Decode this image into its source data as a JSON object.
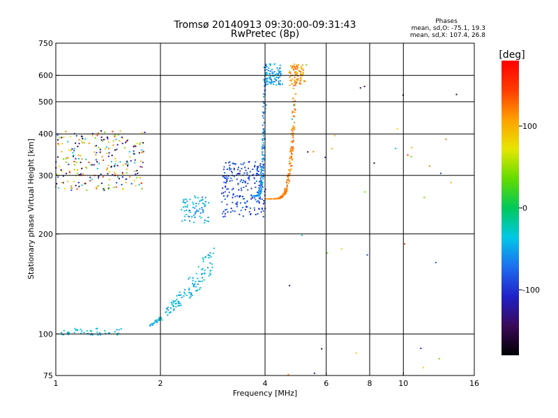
{
  "chart_data": {
    "type": "scatter",
    "title": "Tromsø 20140913 09:30:00-09:31:43",
    "subtitle": "RwPretec (8p)",
    "xlabel": "Frequency [MHz]",
    "ylabel": "Stationary phase Virtual Height [km]",
    "x_scale": "log",
    "y_scale": "log",
    "xlim": [
      1,
      16
    ],
    "ylim": [
      75,
      750
    ],
    "x_ticks": [
      1,
      2,
      4,
      6,
      8,
      10,
      16
    ],
    "y_ticks": [
      75,
      100,
      200,
      300,
      400,
      500,
      600,
      750
    ],
    "x_gridlines": [
      2,
      4,
      6,
      8,
      10
    ],
    "y_gridlines": [
      100,
      200,
      300,
      400,
      500,
      600
    ],
    "grid": true,
    "phase_stats": {
      "heading": "Phases",
      "o_line": "mean, sd,O: -75.1, 19.3",
      "x_line": "mean, sd,X: 107.4, 26.8"
    },
    "colorbar": {
      "label": "[deg]",
      "range": [
        -180,
        180
      ],
      "ticks": [
        100,
        0,
        -100
      ],
      "tick_labels": [
        "100",
        "0",
        "-100"
      ],
      "palette": [
        "#000000",
        "#3a0a5a",
        "#2020c8",
        "#1e6ef0",
        "#00c8e6",
        "#00c85a",
        "#64dc00",
        "#e6e600",
        "#ffa000",
        "#ff3c00",
        "#ff0000"
      ]
    },
    "series": [
      {
        "x": [
          1.0,
          1.8
        ],
        "y": [
          270,
          410
        ],
        "phase": "mixed",
        "count": 260
      },
      {
        "x": [
          1.01,
          1.55
        ],
        "y": [
          99,
          104
        ],
        "phase": -40,
        "count": 45
      },
      {
        "x": [
          1.85,
          2.85
        ],
        "y": [
          105,
          190
        ],
        "phase": -40,
        "count": 140,
        "trace": "lower-branch"
      },
      {
        "x": [
          2.3,
          2.75
        ],
        "y": [
          215,
          260
        ],
        "phase": -50,
        "count": 70
      },
      {
        "x": [
          3.0,
          4.0
        ],
        "y": [
          225,
          330
        ],
        "phase": -90,
        "count": 220
      },
      {
        "x": [
          3.6,
          4.0
        ],
        "y": [
          260,
          640
        ],
        "phase": -60,
        "count": 160,
        "trace": "o-cusp"
      },
      {
        "x": [
          4.0,
          4.45
        ],
        "y": [
          560,
          650
        ],
        "phase": -55,
        "count": 90
      },
      {
        "x": [
          3.95,
          4.9
        ],
        "y": [
          255,
          640
        ],
        "phase": 120,
        "count": 180,
        "trace": "x-trace"
      },
      {
        "x": [
          4.7,
          5.2
        ],
        "y": [
          560,
          650
        ],
        "phase": 110,
        "count": 70
      },
      {
        "x": [
          4.5,
          15.0
        ],
        "y": [
          75,
          650
        ],
        "phase": "mixed",
        "count": 40
      }
    ]
  }
}
